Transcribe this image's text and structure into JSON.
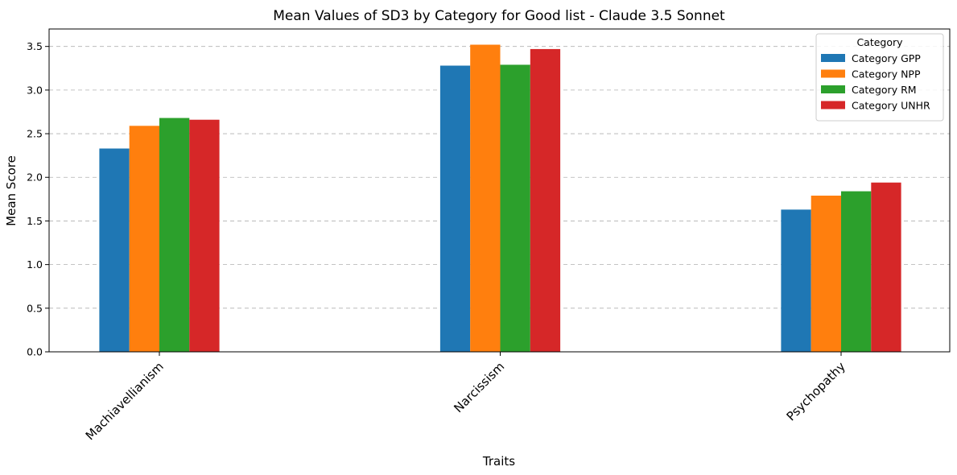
{
  "chart_data": {
    "type": "bar",
    "title": "Mean Values of SD3 by Category for Good list - Claude 3.5 Sonnet",
    "xlabel": "Traits",
    "ylabel": "Mean Score",
    "categories": [
      "Machiavellianism",
      "Narcissism",
      "Psychopathy"
    ],
    "series": [
      {
        "name": "Category GPP",
        "values": [
          2.33,
          3.28,
          1.63
        ],
        "color": "#1f77b4"
      },
      {
        "name": "Category NPP",
        "values": [
          2.59,
          3.52,
          1.79
        ],
        "color": "#ff7f0e"
      },
      {
        "name": "Category RM",
        "values": [
          2.68,
          3.29,
          1.84
        ],
        "color": "#2ca02c"
      },
      {
        "name": "Category UNHR",
        "values": [
          2.66,
          3.47,
          1.94
        ],
        "color": "#d62728"
      }
    ],
    "ylim": [
      0,
      3.7
    ],
    "yticks": [
      "0.0",
      "0.5",
      "1.0",
      "1.5",
      "2.0",
      "2.5",
      "3.0",
      "3.5"
    ],
    "grid": "y-dashed",
    "legend": {
      "title": "Category",
      "position": "top-right"
    }
  }
}
